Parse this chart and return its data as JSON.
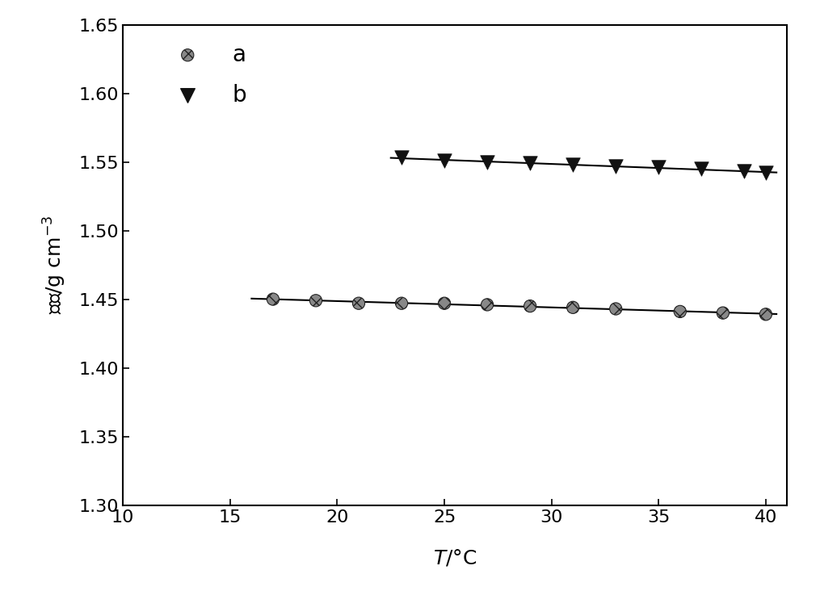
{
  "title": "",
  "xlabel": "T/°C",
  "ylabel": "密度/g cm⁻³",
  "xlim": [
    10,
    41
  ],
  "ylim": [
    1.3,
    1.65
  ],
  "xticks": [
    10,
    15,
    20,
    25,
    30,
    35,
    40
  ],
  "yticks": [
    1.3,
    1.35,
    1.4,
    1.45,
    1.5,
    1.55,
    1.6,
    1.65
  ],
  "series_a": {
    "x": [
      17,
      19,
      21,
      23,
      25,
      27,
      29,
      31,
      33,
      36,
      38,
      40
    ],
    "y": [
      1.45,
      1.449,
      1.447,
      1.447,
      1.447,
      1.446,
      1.445,
      1.444,
      1.443,
      1.441,
      1.44,
      1.439
    ],
    "label": "a"
  },
  "series_b": {
    "x": [
      23,
      25,
      27,
      29,
      31,
      33,
      35,
      37,
      39,
      40
    ],
    "y": [
      1.553,
      1.551,
      1.55,
      1.549,
      1.548,
      1.547,
      1.546,
      1.545,
      1.543,
      1.542
    ],
    "label": "b"
  },
  "line_color": "#000000",
  "line_width": 1.5,
  "background_color": "#ffffff",
  "tick_fontsize": 16,
  "label_fontsize": 18,
  "legend_fontsize": 20
}
